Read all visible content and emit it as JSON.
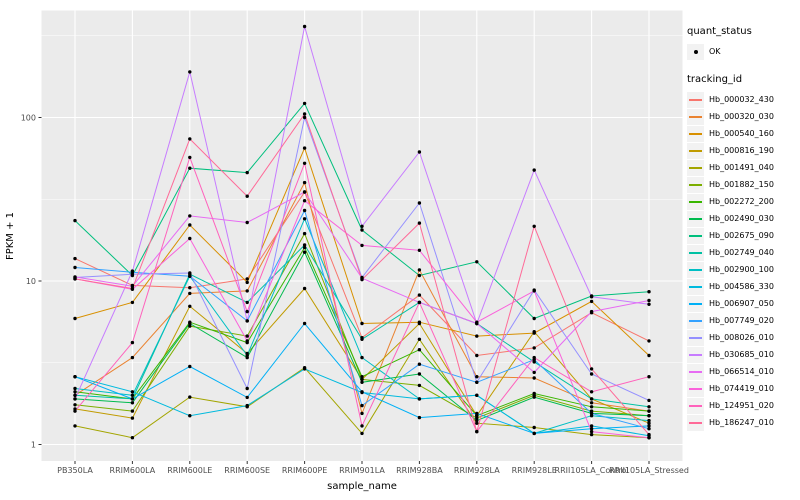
{
  "figure": {
    "background": "#FFFFFF",
    "panel_background": "#EBEBEB",
    "grid_color": "#FFFFFF",
    "axis_text_color": "#4D4D4D",
    "tick_color": "#333333",
    "point_color": "#000000"
  },
  "axes": {
    "x_title": "sample_name",
    "y_title": "FPKM + 1",
    "y_tick_labels": [
      "1",
      "10",
      "100"
    ]
  },
  "legend": {
    "quant_status": {
      "title": "quant_status",
      "items": [
        {
          "label": "OK",
          "symbol": "point"
        }
      ]
    },
    "tracking_id": {
      "title": "tracking_id"
    }
  },
  "chart_data": {
    "type": "line",
    "title": "",
    "xlabel": "sample_name",
    "ylabel": "FPKM + 1",
    "y_scale": "log10",
    "ylim": [
      0.8,
      430
    ],
    "y_major_ticks": [
      1,
      10,
      100
    ],
    "y_minor_gridlines": [
      3.162,
      31.62,
      316.2
    ],
    "grid": true,
    "legend_position": "right",
    "markers": "black point at every observation (quant_status = OK)",
    "categories": [
      "PB350LA",
      "RRIM600LA",
      "RRIM600LE",
      "RRIM600SE",
      "RRIM600PE",
      "RRIM901LA",
      "RRIM928BA",
      "RRIM928LA",
      "RRIM928LE",
      "RRII105LA_Control",
      "RRII105LA_Stressed"
    ],
    "series": [
      {
        "name": "Hb_000032_430",
        "color": "#F8766D",
        "values": [
          13.7,
          9.4,
          9.1,
          10.3,
          35,
          4.5,
          8.2,
          3.5,
          3.9,
          6.4,
          4.3
        ]
      },
      {
        "name": "Hb_000320_030",
        "color": "#EA8331",
        "values": [
          2.0,
          3.4,
          8.4,
          8.7,
          40,
          1.55,
          11.7,
          2.6,
          2.55,
          1.8,
          1.6
        ]
      },
      {
        "name": "Hb_000540_160",
        "color": "#D89000",
        "values": [
          5.9,
          7.4,
          22,
          9.8,
          65,
          5.5,
          5.6,
          4.6,
          4.8,
          7.5,
          3.5
        ]
      },
      {
        "name": "Hb_000816_190",
        "color": "#C09B00",
        "values": [
          1.65,
          1.45,
          7.0,
          3.6,
          9.0,
          2.5,
          5.5,
          1.5,
          4.9,
          1.9,
          1.35
        ]
      },
      {
        "name": "Hb_001491_040",
        "color": "#A3A500",
        "values": [
          1.3,
          1.1,
          1.95,
          1.7,
          2.95,
          1.17,
          4.4,
          1.35,
          1.27,
          1.15,
          1.1
        ]
      },
      {
        "name": "Hb_001882_150",
        "color": "#7CAE00",
        "values": [
          1.75,
          1.6,
          5.3,
          4.6,
          19.5,
          2.5,
          2.3,
          1.45,
          2.0,
          1.6,
          1.5
        ]
      },
      {
        "name": "Hb_002272_200",
        "color": "#39B600",
        "values": [
          2.1,
          1.9,
          5.6,
          4.2,
          16,
          2.6,
          3.8,
          1.5,
          2.05,
          1.7,
          1.6
        ]
      },
      {
        "name": "Hb_002490_030",
        "color": "#00BB4E",
        "values": [
          1.9,
          1.8,
          5.5,
          3.4,
          15,
          2.4,
          2.7,
          1.4,
          1.95,
          1.55,
          1.5
        ]
      },
      {
        "name": "Hb_002675_090",
        "color": "#00BF7D",
        "values": [
          23.4,
          10.8,
          49,
          46,
          122,
          20.5,
          10.8,
          13.1,
          5.9,
          8.1,
          8.6
        ]
      },
      {
        "name": "Hb_002749_040",
        "color": "#00C1A3",
        "values": [
          2.0,
          1.9,
          11,
          7.4,
          16.6,
          4.4,
          7.4,
          5.5,
          3.2,
          1.9,
          1.7
        ]
      },
      {
        "name": "Hb_002900_100",
        "color": "#00BFC4",
        "values": [
          2.2,
          2.0,
          10.7,
          3.5,
          24,
          3.4,
          1.9,
          2.0,
          1.17,
          1.5,
          1.4
        ]
      },
      {
        "name": "Hb_004586_330",
        "color": "#00BADE",
        "values": [
          2.6,
          2.1,
          1.5,
          1.73,
          2.9,
          2.08,
          1.9,
          2.0,
          1.17,
          1.3,
          1.13
        ]
      },
      {
        "name": "Hb_006907_050",
        "color": "#00B0F6",
        "values": [
          2.6,
          1.9,
          3.0,
          1.94,
          5.5,
          2.1,
          1.46,
          1.55,
          1.17,
          1.25,
          1.3
        ]
      },
      {
        "name": "Hb_007749_020",
        "color": "#35A2FF",
        "values": [
          12.1,
          11.3,
          10.7,
          5.7,
          27,
          1.73,
          3.1,
          2.4,
          3.3,
          1.55,
          1.25
        ]
      },
      {
        "name": "Hb_008026_010",
        "color": "#9590FF",
        "values": [
          10.5,
          11.0,
          11.2,
          2.2,
          100,
          10.5,
          30,
          2.4,
          8.8,
          2.7,
          1.86
        ]
      },
      {
        "name": "Hb_030685_010",
        "color": "#C77CFF",
        "values": [
          1.9,
          11.5,
          190,
          5.7,
          360,
          21.6,
          61.5,
          5.5,
          47.7,
          8.0,
          7.2
        ]
      },
      {
        "name": "Hb_066514_010",
        "color": "#E76BF3",
        "values": [
          10.6,
          9.3,
          25,
          22.8,
          35,
          10.4,
          7.4,
          5.5,
          2.76,
          6.5,
          7.6
        ]
      },
      {
        "name": "Hb_074419_010",
        "color": "#FA62DB",
        "values": [
          10.3,
          8.9,
          18.2,
          4.3,
          31,
          16.5,
          15.4,
          5.6,
          8.7,
          1.2,
          1.1
        ]
      },
      {
        "name": "Hb_124951_020",
        "color": "#FF62BC",
        "values": [
          1.6,
          4.2,
          57,
          6.5,
          52.5,
          1.3,
          7.4,
          1.2,
          3.4,
          2.1,
          2.6
        ]
      },
      {
        "name": "Hb_186247_010",
        "color": "#FF6A98",
        "values": [
          10.3,
          9.0,
          74,
          33,
          105,
          10.2,
          22.6,
          1.2,
          21.6,
          2.9,
          1.15
        ]
      }
    ]
  }
}
